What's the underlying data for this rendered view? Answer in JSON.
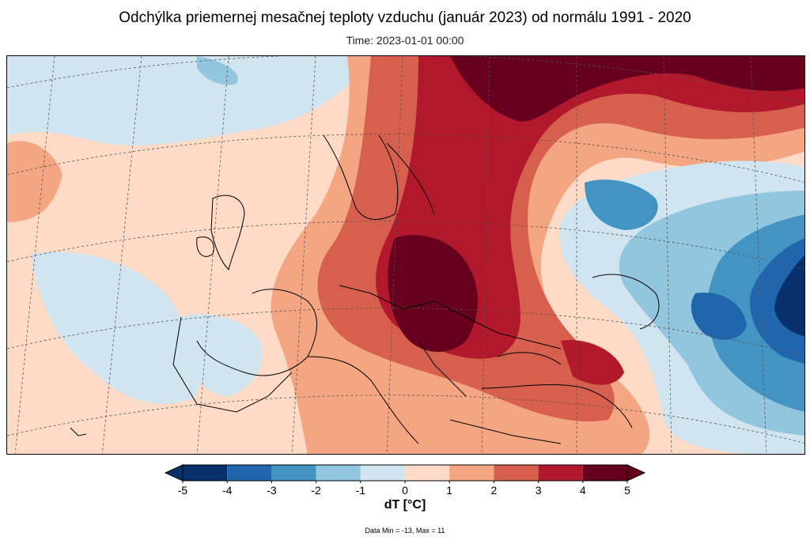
{
  "title": "Odchýlka priemernej mesačnej teploty vzduchu (január 2023) od normálu 1991 - 2020",
  "subtitle": "Time: 2023-01-01 00:00",
  "colorbar": {
    "label": "dT [°C]",
    "ticks": [
      "-5",
      "-4",
      "-3",
      "-2",
      "-1",
      "0",
      "1",
      "2",
      "3",
      "4",
      "5"
    ],
    "colors": [
      "#08306b",
      "#2166ac",
      "#4393c3",
      "#92c5de",
      "#d1e5f0",
      "#fddbc7",
      "#f4a582",
      "#d6604d",
      "#b2182b",
      "#67001f"
    ],
    "under_color": "#08306b",
    "over_color": "#67001f"
  },
  "footer": "Data Min = -13, Max = 11",
  "map_colors": {
    "background": "#f9d3bf",
    "coastline": "#000000",
    "graticule": "#555555"
  }
}
